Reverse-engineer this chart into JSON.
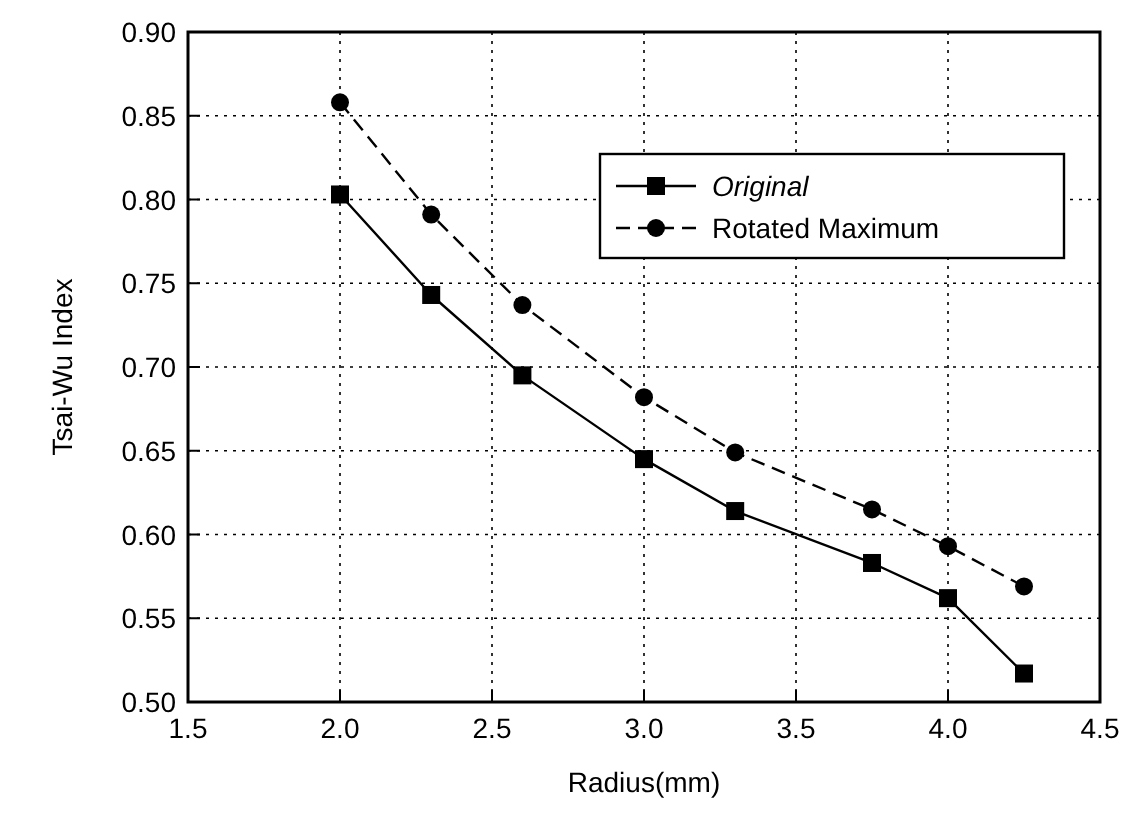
{
  "chart_data": {
    "type": "line",
    "xlabel": "Radius(mm)",
    "ylabel": "Tsai-Wu Index",
    "x": [
      2.0,
      2.3,
      2.6,
      3.0,
      3.3,
      3.75,
      4.0,
      4.25
    ],
    "series": [
      {
        "name": "Original",
        "color": "#000000",
        "marker": "square",
        "line_style": "solid",
        "values": [
          0.803,
          0.743,
          0.695,
          0.645,
          0.614,
          0.583,
          0.562,
          0.517
        ]
      },
      {
        "name": "Rotated Maximum",
        "color": "#000000",
        "marker": "circle",
        "line_style": "dashed",
        "values": [
          0.858,
          0.791,
          0.737,
          0.682,
          0.649,
          0.615,
          0.593,
          0.569
        ]
      }
    ],
    "xlim": [
      1.5,
      4.5
    ],
    "xticks": [
      {
        "value": 1.5,
        "label": "1.5"
      },
      {
        "value": 2,
        "label": "2.0"
      },
      {
        "value": 2.5,
        "label": "2.5"
      },
      {
        "value": 3,
        "label": "3.0"
      },
      {
        "value": 3.5,
        "label": "3.5"
      },
      {
        "value": 4,
        "label": "4.0"
      },
      {
        "value": 4.5,
        "label": "4.5"
      }
    ],
    "ylim": [
      0.5,
      0.9
    ],
    "yticks": [
      {
        "value": 0.5,
        "label": "0.50"
      },
      {
        "value": 0.55,
        "label": "0.55"
      },
      {
        "value": 0.6,
        "label": "0.60"
      },
      {
        "value": 0.65,
        "label": "0.65"
      },
      {
        "value": 0.7,
        "label": "0.70"
      },
      {
        "value": 0.75,
        "label": "0.75"
      },
      {
        "value": 0.8,
        "label": "0.80"
      },
      {
        "value": 0.85,
        "label": "0.85"
      },
      {
        "value": 0.9,
        "label": "0.90"
      }
    ],
    "grid": true,
    "legend": "top right"
  }
}
